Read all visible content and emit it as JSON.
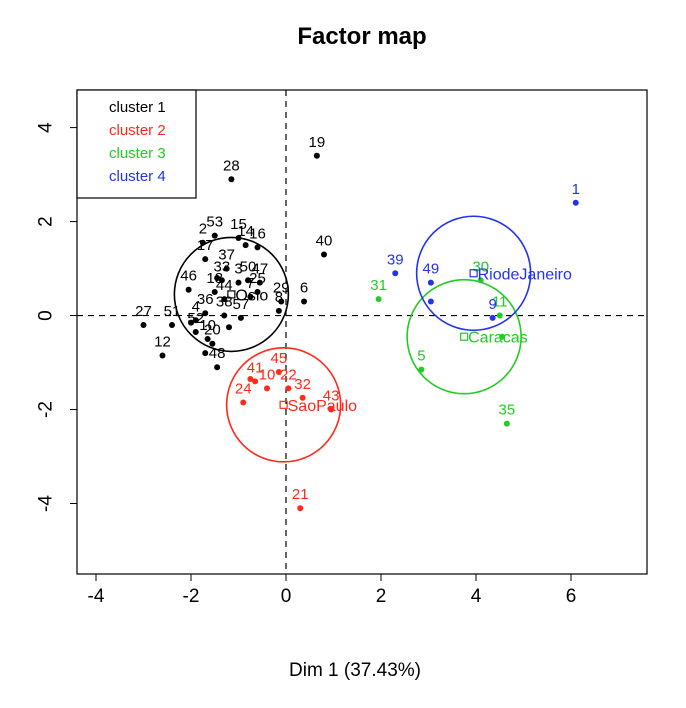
{
  "chart_data": {
    "type": "scatter",
    "title": "Factor map",
    "xlabel": "Dim 1 (37.43%)",
    "ylabel": "",
    "xlim": [
      -4.4,
      7.6
    ],
    "ylim": [
      -5.5,
      4.8
    ],
    "x_ticks": [
      -4,
      -2,
      0,
      2,
      4,
      6
    ],
    "y_ticks": [
      -4,
      -2,
      0,
      2,
      4
    ],
    "grid": false,
    "legend_position": "top-left",
    "colors": {
      "1": "#000000",
      "2": "#ff2a1a",
      "3": "#22cc22",
      "4": "#2233ee"
    },
    "legend": [
      {
        "cluster": 1,
        "label": "cluster 1"
      },
      {
        "cluster": 2,
        "label": "cluster 2"
      },
      {
        "cluster": 3,
        "label": "cluster 3"
      },
      {
        "cluster": 4,
        "label": "cluster 4"
      }
    ],
    "points": [
      {
        "label": "19",
        "x": 0.65,
        "y": 3.4,
        "cluster": 1
      },
      {
        "label": "28",
        "x": -1.15,
        "y": 2.9,
        "cluster": 1
      },
      {
        "label": "53",
        "x": -1.5,
        "y": 1.7,
        "cluster": 1
      },
      {
        "label": "15",
        "x": -1.0,
        "y": 1.65,
        "cluster": 1
      },
      {
        "label": "2",
        "x": -1.75,
        "y": 1.55,
        "cluster": 1
      },
      {
        "label": "14",
        "x": -0.85,
        "y": 1.5,
        "cluster": 1
      },
      {
        "label": "16",
        "x": -0.6,
        "y": 1.45,
        "cluster": 1
      },
      {
        "label": "40",
        "x": 0.8,
        "y": 1.3,
        "cluster": 1
      },
      {
        "label": "17",
        "x": -1.7,
        "y": 1.2,
        "cluster": 1
      },
      {
        "label": "37",
        "x": -1.25,
        "y": 1.0,
        "cluster": 1
      },
      {
        "label": "3",
        "x": -1.0,
        "y": 0.7,
        "cluster": 1
      },
      {
        "label": "33",
        "x": -1.35,
        "y": 0.75,
        "cluster": 1
      },
      {
        "label": "50",
        "x": -0.8,
        "y": 0.75,
        "cluster": 1
      },
      {
        "label": "7",
        "x": -0.75,
        "y": 0.4,
        "cluster": 1
      },
      {
        "label": "46",
        "x": -2.05,
        "y": 0.55,
        "cluster": 1
      },
      {
        "label": "18",
        "x": -1.5,
        "y": 0.5,
        "cluster": 1
      },
      {
        "label": "25",
        "x": -0.6,
        "y": 0.5,
        "cluster": 1
      },
      {
        "label": "47",
        "x": -0.55,
        "y": 0.7,
        "cluster": 1
      },
      {
        "label": "6",
        "x": 0.38,
        "y": 0.3,
        "cluster": 1
      },
      {
        "label": "29",
        "x": -0.1,
        "y": 0.3,
        "cluster": 1
      },
      {
        "label": "8",
        "x": -0.15,
        "y": 0.1,
        "cluster": 1
      },
      {
        "label": "27",
        "x": -3.0,
        "y": -0.2,
        "cluster": 1
      },
      {
        "label": "51",
        "x": -2.4,
        "y": -0.2,
        "cluster": 1
      },
      {
        "label": "36",
        "x": -1.7,
        "y": 0.05,
        "cluster": 1
      },
      {
        "label": "38",
        "x": -1.3,
        "y": 0.0,
        "cluster": 1
      },
      {
        "label": "4",
        "x": -1.9,
        "y": -0.1,
        "cluster": 1
      },
      {
        "label": "52",
        "x": -1.9,
        "y": -0.35,
        "cluster": 1
      },
      {
        "label": "57",
        "x": -0.95,
        "y": -0.05,
        "cluster": 1
      },
      {
        "label": "44",
        "x": -1.3,
        "y": 0.35,
        "cluster": 1
      },
      {
        "label": "12",
        "x": -2.6,
        "y": -0.85,
        "cluster": 1
      },
      {
        "label": "10",
        "x": -1.65,
        "y": -0.5,
        "cluster": 1
      },
      {
        "label": "20",
        "x": -1.55,
        "y": -0.6,
        "cluster": 1
      },
      {
        "label": "48",
        "x": -1.45,
        "y": -1.1,
        "cluster": 1
      },
      {
        "label": "",
        "x": -2.0,
        "y": -0.15,
        "cluster": 1
      },
      {
        "label": "",
        "x": -1.7,
        "y": -0.8,
        "cluster": 1
      },
      {
        "label": "",
        "x": -1.2,
        "y": -0.25,
        "cluster": 1
      },
      {
        "label": "",
        "x": -1.45,
        "y": 0.8,
        "cluster": 1
      },
      {
        "label": "45",
        "x": -0.15,
        "y": -1.2,
        "cluster": 2
      },
      {
        "label": "41",
        "x": -0.65,
        "y": -1.4,
        "cluster": 2
      },
      {
        "label": "10",
        "x": -0.4,
        "y": -1.55,
        "cluster": 2
      },
      {
        "label": "22",
        "x": 0.05,
        "y": -1.55,
        "cluster": 2
      },
      {
        "label": "32",
        "x": 0.35,
        "y": -1.75,
        "cluster": 2
      },
      {
        "label": "24",
        "x": -0.9,
        "y": -1.85,
        "cluster": 2
      },
      {
        "label": "43",
        "x": 0.95,
        "y": -2.0,
        "cluster": 2
      },
      {
        "label": "21",
        "x": 0.3,
        "y": -4.1,
        "cluster": 2
      },
      {
        "label": "",
        "x": -0.75,
        "y": -1.35,
        "cluster": 2
      },
      {
        "label": "31",
        "x": 1.95,
        "y": 0.35,
        "cluster": 3
      },
      {
        "label": "30",
        "x": 4.1,
        "y": 0.75,
        "cluster": 3
      },
      {
        "label": "5",
        "x": 2.85,
        "y": -1.15,
        "cluster": 3
      },
      {
        "label": "35",
        "x": 4.65,
        "y": -2.3,
        "cluster": 3
      },
      {
        "label": "11",
        "x": 4.5,
        "y": 0.0,
        "cluster": 3
      },
      {
        "label": "",
        "x": 4.55,
        "y": -0.45,
        "cluster": 3
      },
      {
        "label": "1",
        "x": 6.1,
        "y": 2.4,
        "cluster": 4
      },
      {
        "label": "39",
        "x": 2.3,
        "y": 0.9,
        "cluster": 4
      },
      {
        "label": "49",
        "x": 3.05,
        "y": 0.7,
        "cluster": 4
      },
      {
        "label": "9",
        "x": 4.35,
        "y": -0.05,
        "cluster": 4
      },
      {
        "label": "",
        "x": 3.05,
        "y": 0.3,
        "cluster": 4
      }
    ],
    "centers": [
      {
        "label": "Oslo",
        "x": -1.15,
        "y": 0.45,
        "radius": 1.2,
        "cluster": 1
      },
      {
        "label": "SaoPaulo",
        "x": -0.05,
        "y": -1.9,
        "radius": 1.2,
        "cluster": 2
      },
      {
        "label": "Caracas",
        "x": 3.75,
        "y": -0.45,
        "radius": 1.2,
        "cluster": 3
      },
      {
        "label": "RiodeJaneiro",
        "x": 3.95,
        "y": 0.9,
        "radius": 1.2,
        "cluster": 4
      }
    ]
  }
}
